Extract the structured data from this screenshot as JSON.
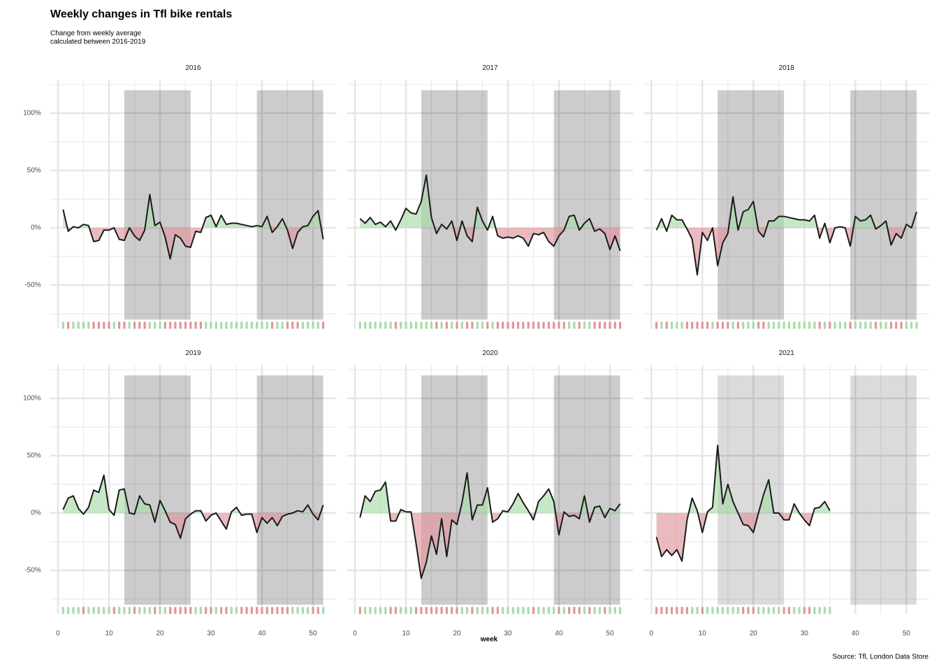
{
  "header": {
    "title": "Weekly changes in Tfl bike rentals",
    "subtitle": [
      "Change from weekly average",
      "calculated between 2016-2019"
    ]
  },
  "x_axis_label": "week",
  "caption": "Source: Tfl, London Data Store",
  "chart_data": [
    {
      "type": "area-line",
      "title": "2016",
      "x": [
        1,
        2,
        3,
        4,
        5,
        6,
        7,
        8,
        9,
        10,
        11,
        12,
        13,
        14,
        15,
        16,
        17,
        18,
        19,
        20,
        21,
        22,
        23,
        24,
        25,
        26,
        27,
        28,
        29,
        30,
        31,
        32,
        33,
        34,
        35,
        36,
        37,
        38,
        39,
        40,
        41,
        42,
        43,
        44,
        45,
        46,
        47,
        48,
        49,
        50,
        51,
        52
      ],
      "values": [
        16,
        -3,
        1,
        0,
        3,
        2,
        -12,
        -11,
        -2,
        -2,
        0,
        -10,
        -11,
        0,
        -7,
        -11,
        -2,
        29,
        2,
        5,
        -8,
        -27,
        -6,
        -9,
        -16,
        -17,
        -3,
        -4,
        9,
        11,
        1,
        11,
        3,
        4,
        4,
        3,
        2,
        1,
        2,
        1,
        10,
        -4,
        1,
        8,
        -2,
        -18,
        -4,
        1,
        2,
        10,
        15,
        -10
      ],
      "bands": [
        {
          "start": 13,
          "end": 26
        },
        {
          "start": 39,
          "end": 52
        }
      ],
      "band_ylim": [
        -80,
        120
      ],
      "band_color": "rgba(0,0,0,0.2)",
      "positive_color": "#a9dba9",
      "negative_color": "#e0959c",
      "line_color": "#1a1a1a",
      "xlim": [
        -1.55,
        54.55
      ],
      "ylim": [
        -88,
        129
      ],
      "xticks": [
        0,
        10,
        20,
        30,
        40,
        50
      ],
      "x_minor": [
        5,
        15,
        25,
        35,
        45
      ],
      "yticks": [
        {
          "value": -50,
          "label": "-50%"
        },
        {
          "value": 0,
          "label": "0%"
        },
        {
          "value": 50,
          "label": "50%"
        },
        {
          "value": 100,
          "label": "100%"
        }
      ],
      "y_minor": [
        -75,
        -25,
        25,
        75,
        125
      ],
      "tile_y": -85
    },
    {
      "type": "area-line",
      "title": "2017",
      "x": [
        1,
        2,
        3,
        4,
        5,
        6,
        7,
        8,
        9,
        10,
        11,
        12,
        13,
        14,
        15,
        16,
        17,
        18,
        19,
        20,
        21,
        22,
        23,
        24,
        25,
        26,
        27,
        28,
        29,
        30,
        31,
        32,
        33,
        34,
        35,
        36,
        37,
        38,
        39,
        40,
        41,
        42,
        43,
        44,
        45,
        46,
        47,
        48,
        49,
        50,
        51,
        52
      ],
      "values": [
        8,
        4,
        9,
        3,
        5,
        1,
        6,
        -2,
        7,
        17,
        13,
        12,
        23,
        46,
        9,
        -5,
        3,
        -1,
        6,
        -11,
        6,
        -7,
        -12,
        18,
        6,
        -2,
        10,
        -7,
        -9,
        -8,
        -9,
        -7,
        -9,
        -16,
        -5,
        -6,
        -4,
        -12,
        -16,
        -7,
        -2,
        10,
        11,
        -2,
        4,
        8,
        -3,
        -1,
        -5,
        -19,
        -7,
        -20
      ],
      "bands": [
        {
          "start": 13,
          "end": 26
        },
        {
          "start": 39,
          "end": 52
        }
      ],
      "band_ylim": [
        -80,
        120
      ],
      "band_color": "rgba(0,0,0,0.2)",
      "positive_color": "#a9dba9",
      "negative_color": "#e0959c",
      "line_color": "#1a1a1a",
      "xlim": [
        -1.55,
        54.55
      ],
      "ylim": [
        -88,
        129
      ],
      "xticks": [
        0,
        10,
        20,
        30,
        40,
        50
      ],
      "x_minor": [
        5,
        15,
        25,
        35,
        45
      ],
      "yticks": [
        {
          "value": -50,
          "label": "-50%"
        },
        {
          "value": 0,
          "label": "0%"
        },
        {
          "value": 50,
          "label": "50%"
        },
        {
          "value": 100,
          "label": "100%"
        }
      ],
      "y_minor": [
        -75,
        -25,
        25,
        75,
        125
      ],
      "tile_y": -85
    },
    {
      "type": "area-line",
      "title": "2018",
      "x": [
        1,
        2,
        3,
        4,
        5,
        6,
        7,
        8,
        9,
        10,
        11,
        12,
        13,
        14,
        15,
        16,
        17,
        18,
        19,
        20,
        21,
        22,
        23,
        24,
        25,
        26,
        27,
        28,
        29,
        30,
        31,
        32,
        33,
        34,
        35,
        36,
        37,
        38,
        39,
        40,
        41,
        42,
        43,
        44,
        45,
        46,
        47,
        48,
        49,
        50,
        51,
        52
      ],
      "values": [
        -2,
        8,
        -3,
        11,
        7,
        7,
        -1,
        -10,
        -41,
        -4,
        -11,
        0,
        -33,
        -13,
        -5,
        27,
        -2,
        14,
        16,
        23,
        -3,
        -8,
        6,
        6,
        10,
        10,
        9,
        8,
        7,
        7,
        6,
        11,
        -9,
        4,
        -13,
        0,
        1,
        0,
        -16,
        10,
        6,
        7,
        11,
        -1,
        2,
        6,
        -15,
        -5,
        -9,
        3,
        0,
        14
      ],
      "bands": [
        {
          "start": 13,
          "end": 26
        },
        {
          "start": 39,
          "end": 52
        }
      ],
      "band_ylim": [
        -80,
        120
      ],
      "band_color": "rgba(0,0,0,0.2)",
      "positive_color": "#a9dba9",
      "negative_color": "#e0959c",
      "line_color": "#1a1a1a",
      "xlim": [
        -1.55,
        54.55
      ],
      "ylim": [
        -88,
        129
      ],
      "xticks": [
        0,
        10,
        20,
        30,
        40,
        50
      ],
      "x_minor": [
        5,
        15,
        25,
        35,
        45
      ],
      "yticks": [
        {
          "value": -50,
          "label": "-50%"
        },
        {
          "value": 0,
          "label": "0%"
        },
        {
          "value": 50,
          "label": "50%"
        },
        {
          "value": 100,
          "label": "100%"
        }
      ],
      "y_minor": [
        -75,
        -25,
        25,
        75,
        125
      ],
      "tile_y": -85
    },
    {
      "type": "area-line",
      "title": "2019",
      "x": [
        1,
        2,
        3,
        4,
        5,
        6,
        7,
        8,
        9,
        10,
        11,
        12,
        13,
        14,
        15,
        16,
        17,
        18,
        19,
        20,
        21,
        22,
        23,
        24,
        25,
        26,
        27,
        28,
        29,
        30,
        31,
        32,
        33,
        34,
        35,
        36,
        37,
        38,
        39,
        40,
        41,
        42,
        43,
        44,
        45,
        46,
        47,
        48,
        49,
        50,
        51,
        52
      ],
      "values": [
        3,
        13,
        15,
        4,
        -1,
        5,
        20,
        18,
        33,
        3,
        -2,
        20,
        21,
        0,
        -1,
        15,
        8,
        7,
        -8,
        11,
        2,
        -8,
        -10,
        -22,
        -5,
        -1,
        2,
        2,
        -7,
        -2,
        0,
        -7,
        -14,
        1,
        5,
        -2,
        -1,
        -1,
        -17,
        -4,
        -9,
        -4,
        -11,
        -3,
        -1,
        0,
        2,
        1,
        7,
        -1,
        -6,
        7
      ],
      "bands": [
        {
          "start": 13,
          "end": 26
        },
        {
          "start": 39,
          "end": 52
        }
      ],
      "band_ylim": [
        -80,
        120
      ],
      "band_color": "rgba(0,0,0,0.2)",
      "positive_color": "#a9dba9",
      "negative_color": "#e0959c",
      "line_color": "#1a1a1a",
      "xlim": [
        -1.55,
        54.55
      ],
      "ylim": [
        -88,
        129
      ],
      "xticks": [
        0,
        10,
        20,
        30,
        40,
        50
      ],
      "x_minor": [
        5,
        15,
        25,
        35,
        45
      ],
      "yticks": [
        {
          "value": -50,
          "label": "-50%"
        },
        {
          "value": 0,
          "label": "0%"
        },
        {
          "value": 50,
          "label": "50%"
        },
        {
          "value": 100,
          "label": "100%"
        }
      ],
      "y_minor": [
        -75,
        -25,
        25,
        75,
        125
      ],
      "tile_y": -85
    },
    {
      "type": "area-line",
      "title": "2020",
      "x": [
        1,
        2,
        3,
        4,
        5,
        6,
        7,
        8,
        9,
        10,
        11,
        12,
        13,
        14,
        15,
        16,
        17,
        18,
        19,
        20,
        21,
        22,
        23,
        24,
        25,
        26,
        27,
        28,
        29,
        30,
        31,
        32,
        33,
        34,
        35,
        36,
        37,
        38,
        39,
        40,
        41,
        42,
        43,
        44,
        45,
        46,
        47,
        48,
        49,
        50,
        51,
        52
      ],
      "values": [
        -4,
        15,
        10,
        19,
        20,
        27,
        -7,
        -7,
        3,
        1,
        1,
        -27,
        -57,
        -43,
        -20,
        -36,
        -5,
        -38,
        -6,
        -10,
        9,
        35,
        -6,
        7,
        7,
        22,
        -8,
        -5,
        2,
        1,
        8,
        17,
        9,
        2,
        -6,
        10,
        15,
        21,
        10,
        -19,
        1,
        -3,
        -2,
        -5,
        15,
        -8,
        5,
        6,
        -4,
        4,
        2,
        8
      ],
      "bands": [
        {
          "start": 13,
          "end": 26
        },
        {
          "start": 39,
          "end": 52
        }
      ],
      "band_ylim": [
        -80,
        120
      ],
      "band_color": "rgba(0,0,0,0.2)",
      "positive_color": "#a9dba9",
      "negative_color": "#e0959c",
      "line_color": "#1a1a1a",
      "xlim": [
        -1.55,
        54.55
      ],
      "ylim": [
        -88,
        129
      ],
      "xticks": [
        0,
        10,
        20,
        30,
        40,
        50
      ],
      "x_minor": [
        5,
        15,
        25,
        35,
        45
      ],
      "yticks": [
        {
          "value": -50,
          "label": "-50%"
        },
        {
          "value": 0,
          "label": "0%"
        },
        {
          "value": 50,
          "label": "50%"
        },
        {
          "value": 100,
          "label": "100%"
        }
      ],
      "y_minor": [
        -75,
        -25,
        25,
        75,
        125
      ],
      "tile_y": -85
    },
    {
      "type": "area-line",
      "title": "2021",
      "x": [
        1,
        2,
        3,
        4,
        5,
        6,
        7,
        8,
        9,
        10,
        11,
        12,
        13,
        14,
        15,
        16,
        17,
        18,
        19,
        20,
        21,
        22,
        23,
        24,
        25,
        26,
        27,
        28,
        29,
        30,
        31,
        32,
        33,
        34,
        35
      ],
      "values": [
        -21,
        -38,
        -32,
        -37,
        -32,
        -42,
        -6,
        13,
        2,
        -17,
        1,
        5,
        59,
        8,
        25,
        10,
        0,
        -10,
        -11,
        -17,
        0,
        16,
        29,
        0,
        0,
        -6,
        -6,
        8,
        0,
        -6,
        -11,
        4,
        5,
        10,
        2
      ],
      "bands": [
        {
          "start": 13,
          "end": 26
        },
        {
          "start": 39,
          "end": 52
        }
      ],
      "band_ylim": [
        -80,
        120
      ],
      "band_color": "rgba(0,0,0,0.14)",
      "positive_color": "#a9dba9",
      "negative_color": "#e0959c",
      "line_color": "#1a1a1a",
      "xlim": [
        -1.55,
        54.55
      ],
      "ylim": [
        -88,
        129
      ],
      "xticks": [
        0,
        10,
        20,
        30,
        40,
        50
      ],
      "x_minor": [
        5,
        15,
        25,
        35,
        45
      ],
      "yticks": [
        {
          "value": -50,
          "label": "-50%"
        },
        {
          "value": 0,
          "label": "0%"
        },
        {
          "value": 50,
          "label": "50%"
        },
        {
          "value": 100,
          "label": "100%"
        }
      ],
      "y_minor": [
        -75,
        -25,
        25,
        75,
        125
      ],
      "tile_y": -85
    }
  ]
}
